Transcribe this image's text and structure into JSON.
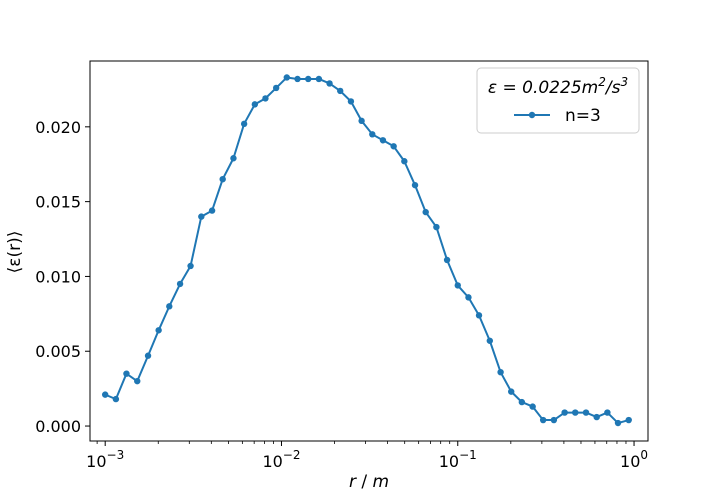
{
  "chart_data": {
    "type": "line",
    "x_scale": "log",
    "xlim": [
      0.00082,
      1.2
    ],
    "ylim": [
      -0.001,
      0.0244
    ],
    "x_ticks": [
      {
        "value": 0.001,
        "base": "10",
        "exp": "−3"
      },
      {
        "value": 0.01,
        "base": "10",
        "exp": "−2"
      },
      {
        "value": 0.1,
        "base": "10",
        "exp": "−1"
      },
      {
        "value": 1,
        "base": "10",
        "exp": "0"
      }
    ],
    "y_ticks": [
      {
        "value": 0.0,
        "label": "0.000"
      },
      {
        "value": 0.005,
        "label": "0.005"
      },
      {
        "value": 0.01,
        "label": "0.010"
      },
      {
        "value": 0.015,
        "label": "0.015"
      },
      {
        "value": 0.02,
        "label": "0.020"
      }
    ],
    "xlabel": {
      "italic": "r",
      "text": " / ",
      "unit": "m"
    },
    "ylabel": "⟨ε(r)⟩",
    "legend": {
      "position": "top-right",
      "title_prefix": "ε = 0.0225m",
      "title_sup1": "2",
      "title_mid": "/s",
      "title_sup2": "3"
    },
    "series": [
      {
        "name": "n=3",
        "color": "#1f77b4",
        "x": [
          0.001,
          0.00115,
          0.00132,
          0.00152,
          0.00175,
          0.00201,
          0.00231,
          0.00266,
          0.00305,
          0.00351,
          0.00404,
          0.00464,
          0.00534,
          0.00614,
          0.00706,
          0.00811,
          0.00933,
          0.01072,
          0.01233,
          0.01418,
          0.0163,
          0.01874,
          0.02154,
          0.02477,
          0.02848,
          0.03275,
          0.03765,
          0.04329,
          0.04977,
          0.05722,
          0.06579,
          0.07565,
          0.08697,
          0.1,
          0.115,
          0.132,
          0.152,
          0.175,
          0.201,
          0.231,
          0.266,
          0.305,
          0.351,
          0.404,
          0.464,
          0.534,
          0.614,
          0.706,
          0.811,
          0.933
        ],
        "y": [
          0.0021,
          0.0018,
          0.0035,
          0.003,
          0.0047,
          0.0064,
          0.008,
          0.0095,
          0.0107,
          0.014,
          0.0144,
          0.0165,
          0.0179,
          0.0202,
          0.0215,
          0.0219,
          0.0226,
          0.0233,
          0.0232,
          0.0232,
          0.0232,
          0.0229,
          0.0224,
          0.0217,
          0.0204,
          0.0195,
          0.0191,
          0.0187,
          0.0177,
          0.0161,
          0.0143,
          0.0133,
          0.0111,
          0.0094,
          0.0086,
          0.0074,
          0.0057,
          0.0036,
          0.0023,
          0.0016,
          0.0013,
          0.0004,
          0.0004,
          0.0009,
          0.0009,
          0.0009,
          0.0006,
          0.0009,
          0.0002,
          0.0004
        ]
      }
    ]
  }
}
